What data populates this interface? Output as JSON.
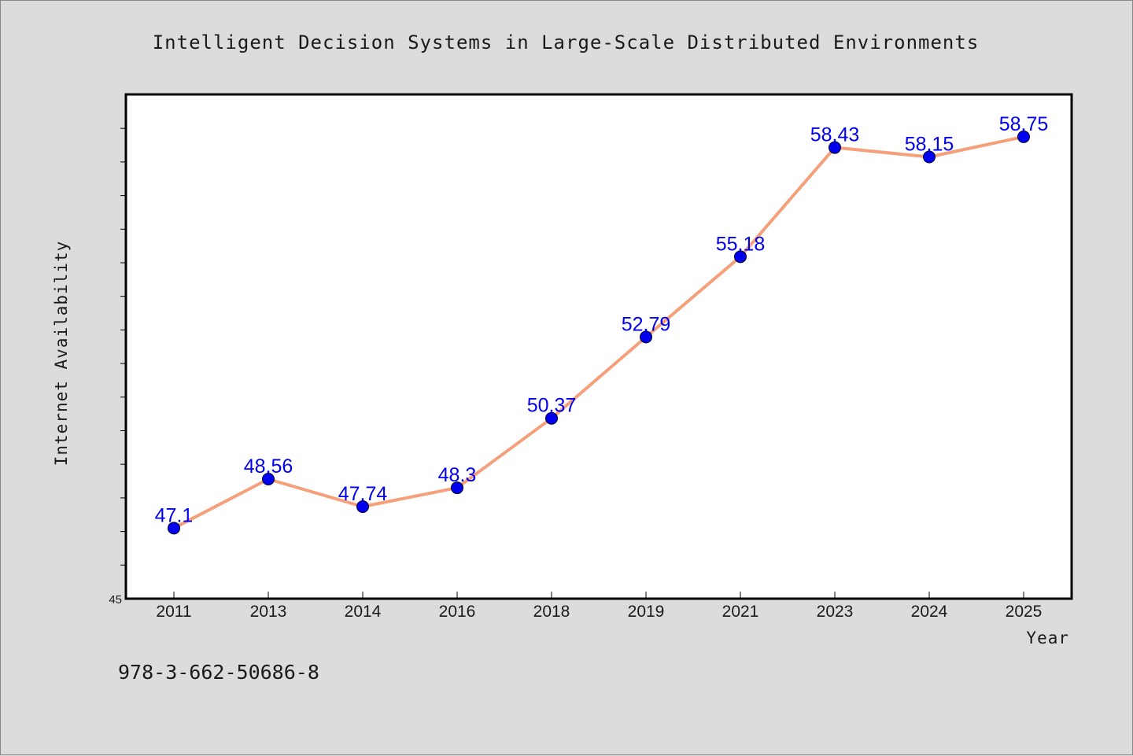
{
  "chart_data": {
    "type": "line",
    "title": "Intelligent Decision Systems in Large-Scale Distributed Environments",
    "xlabel": "Year",
    "ylabel": "Internet Availability",
    "categories": [
      "2011",
      "2013",
      "2014",
      "2016",
      "2018",
      "2019",
      "2021",
      "2023",
      "2024",
      "2025"
    ],
    "series": [
      {
        "values": [
          47.1,
          48.56,
          47.74,
          48.3,
          50.37,
          52.79,
          55.18,
          58.43,
          58.15,
          58.75
        ],
        "data_labels": [
          "47.1",
          "48.56",
          "47.74",
          "48.3",
          "50.37",
          "52.79",
          "55.18",
          "58.43",
          "58.15",
          "58.75"
        ],
        "line_color": "#f5a07a",
        "marker_color": "#0000ee",
        "label_color": "#0000ee"
      }
    ],
    "ylim": [
      45,
      60
    ],
    "yticks": [
      45,
      46,
      47,
      48,
      49,
      50,
      51,
      52,
      53,
      54,
      55,
      56,
      57,
      58,
      59
    ],
    "ytick_labels_shown": [
      "45"
    ],
    "grid": false,
    "legend": "none"
  },
  "footer": {
    "isbn": "978-3-662-50686-8"
  },
  "colors": {
    "background": "#dcdcdc",
    "plot_background": "#ffffff",
    "axis_frame": "#000000"
  }
}
